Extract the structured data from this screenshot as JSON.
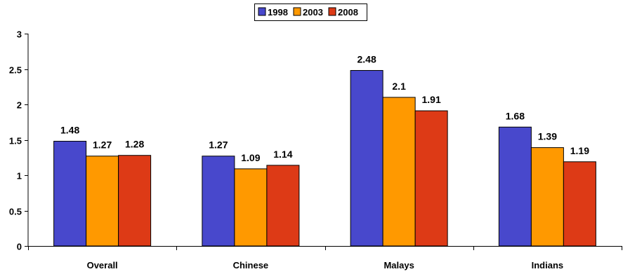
{
  "chart_data": {
    "type": "bar",
    "categories": [
      "Overall",
      "Chinese",
      "Malays",
      "Indians"
    ],
    "series": [
      {
        "name": "1998",
        "values": [
          1.48,
          1.27,
          2.48,
          1.68
        ],
        "color": "#4848CC"
      },
      {
        "name": "2003",
        "values": [
          1.27,
          1.09,
          2.1,
          1.39
        ],
        "color": "#FF9900"
      },
      {
        "name": "2008",
        "values": [
          1.28,
          1.14,
          1.91,
          1.19
        ],
        "color": "#DD3A16"
      }
    ],
    "data_labels": [
      [
        "1.48",
        "1.27",
        "1.28"
      ],
      [
        "1.27",
        "1.09",
        "1.14"
      ],
      [
        "2.48",
        "2.1",
        "1.91"
      ],
      [
        "1.68",
        "1.39",
        "1.19"
      ]
    ],
    "y_ticks": [
      "0",
      "0.5",
      "1",
      "1.5",
      "2",
      "2.5",
      "3"
    ],
    "ylim": [
      0,
      3
    ],
    "title": "",
    "xlabel": "",
    "ylabel": "",
    "grid": false,
    "legend_position": "top-center"
  }
}
